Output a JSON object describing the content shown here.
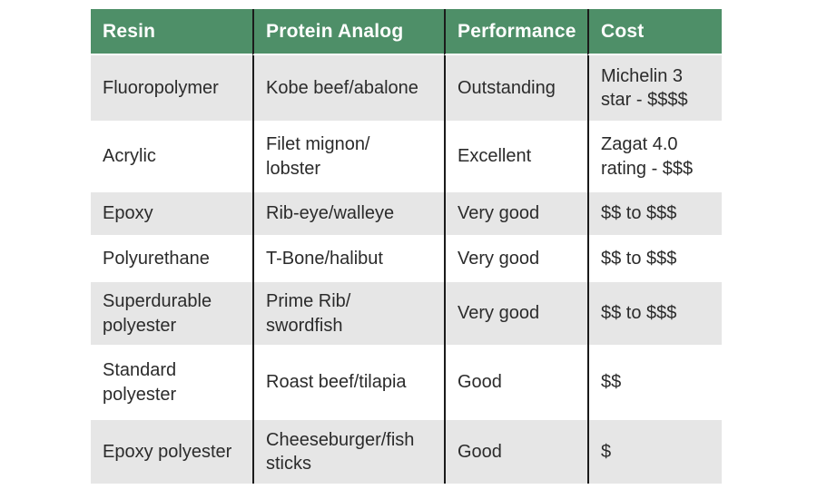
{
  "theme": {
    "header_bg": "#4e8f68",
    "header_text_color": "#ffffff",
    "alt_row_bg": "#e6e6e6",
    "row_bg": "#ffffff",
    "divider_color": "#1b1b1b",
    "body_text_color": "#2b2b2b"
  },
  "chart_data": {
    "type": "table",
    "title": "",
    "columns": [
      "Resin",
      "Protein Analog",
      "Performance",
      "Cost"
    ],
    "rows": [
      {
        "resin": "Fluoropolymer",
        "protein_analog": "Kobe beef/abalone",
        "performance": "Outstanding",
        "cost": "Michelin 3\nstar - $$$$"
      },
      {
        "resin": "Acrylic",
        "protein_analog": "Filet mignon/\nlobster",
        "performance": "Excellent",
        "cost": "Zagat 4.0\nrating - $$$"
      },
      {
        "resin": "Epoxy",
        "protein_analog": "Rib-eye/walleye",
        "performance": "Very good",
        "cost": "$$ to $$$"
      },
      {
        "resin": "Polyurethane",
        "protein_analog": "T-Bone/halibut",
        "performance": "Very good",
        "cost": "$$ to $$$"
      },
      {
        "resin": "Superdurable\npolyester",
        "protein_analog": "Prime Rib/\nswordfish",
        "performance": "Very good",
        "cost": "$$ to $$$"
      },
      {
        "resin": "Standard\npolyester",
        "protein_analog": "Roast beef/tilapia",
        "performance": "Good",
        "cost": "$$"
      },
      {
        "resin": "Epoxy polyester",
        "protein_analog": "Cheeseburger/fish\nsticks",
        "performance": "Good",
        "cost": "$"
      }
    ]
  }
}
